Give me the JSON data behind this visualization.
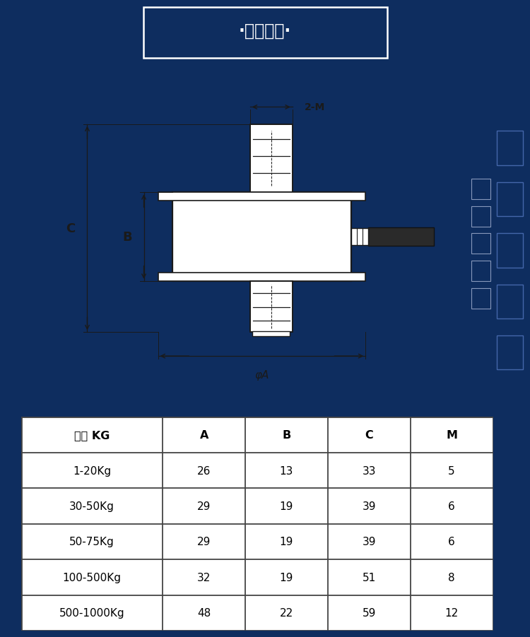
{
  "title": "·外型尺寸·",
  "bg_color": "#0e2d5f",
  "diagram_bg": "#e8e8e8",
  "table_headers": [
    "量程 KG",
    "A",
    "B",
    "C",
    "M"
  ],
  "table_rows": [
    [
      "1-20Kg",
      "26",
      "13",
      "33",
      "5"
    ],
    [
      "30-50Kg",
      "29",
      "19",
      "39",
      "6"
    ],
    [
      "50-75Kg",
      "29",
      "19",
      "39",
      "6"
    ],
    [
      "100-500Kg",
      "32",
      "19",
      "51",
      "8"
    ],
    [
      "500-1000Kg",
      "48",
      "22",
      "59",
      "12"
    ]
  ],
  "line_color": "#1a1a1a",
  "label_color": "#1a1a1a",
  "table_line_color": "#444444",
  "diagram_white": "#f0f0f0",
  "body_color": "#ffffff"
}
